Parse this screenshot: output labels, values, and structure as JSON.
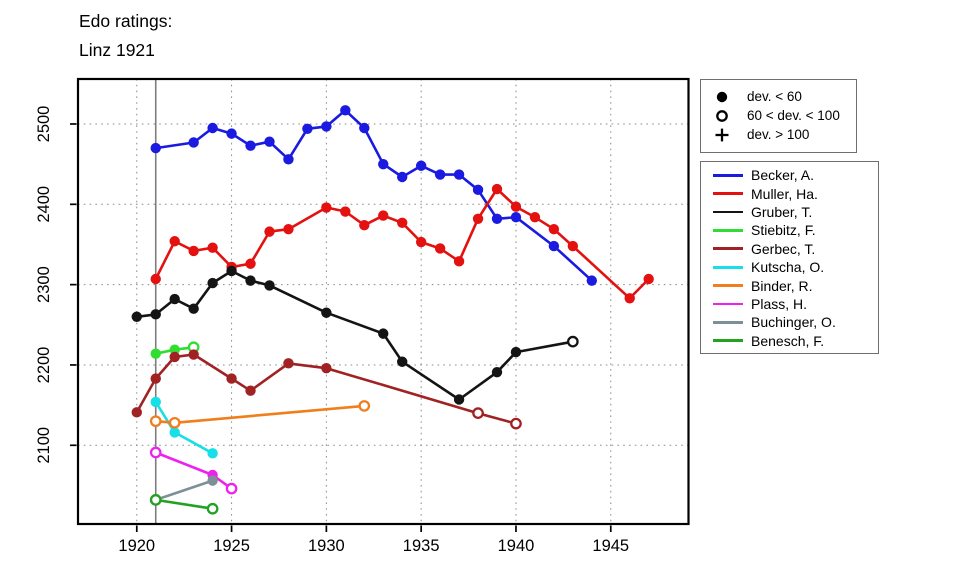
{
  "title": {
    "line1": "Edo ratings:",
    "line2": "Linz 1921"
  },
  "symbol_legend": {
    "items": [
      {
        "symbol": "filled-circle",
        "label": "dev. < 60"
      },
      {
        "symbol": "open-circle",
        "label": "60 < dev. < 100"
      },
      {
        "symbol": "plus",
        "label": "dev. > 100"
      }
    ]
  },
  "colors": {
    "background": "#ffffff",
    "axis": "#000000",
    "grid": "#8c8c8c",
    "event_line": "#7d7d7d"
  },
  "chart_data": {
    "type": "line",
    "title": "Edo ratings: Linz 1921",
    "xlabel": "",
    "ylabel": "",
    "x_ticks": [
      1920,
      1925,
      1930,
      1935,
      1940,
      1945
    ],
    "y_ticks": [
      2100,
      2200,
      2300,
      2400,
      2500
    ],
    "xlim": [
      1916.9,
      1949.1
    ],
    "ylim": [
      2002,
      2556
    ],
    "grid": "dotted",
    "event_line_year": 1921,
    "legend_position": "right",
    "point_format": "[year, rating, marker] marker f = filled circle (dev. < 60), o = open circle (60 < dev. < 100)",
    "series": [
      {
        "name": "Becker, A.",
        "color": "#1a1ae0",
        "points": [
          [
            1921,
            2470,
            "f"
          ],
          [
            1923,
            2477,
            "f"
          ],
          [
            1924,
            2495,
            "f"
          ],
          [
            1925,
            2488,
            "f"
          ],
          [
            1926,
            2473,
            "f"
          ],
          [
            1927,
            2478,
            "f"
          ],
          [
            1928,
            2456,
            "f"
          ],
          [
            1929,
            2494,
            "f"
          ],
          [
            1930,
            2497,
            "f"
          ],
          [
            1931,
            2517,
            "f"
          ],
          [
            1932,
            2495,
            "f"
          ],
          [
            1933,
            2450,
            "f"
          ],
          [
            1934,
            2434,
            "f"
          ],
          [
            1935,
            2448,
            "f"
          ],
          [
            1936,
            2437,
            "f"
          ],
          [
            1937,
            2437,
            "f"
          ],
          [
            1938,
            2418,
            "f"
          ],
          [
            1939,
            2382,
            "f"
          ],
          [
            1940,
            2384,
            "f"
          ],
          [
            1942,
            2348,
            "f"
          ],
          [
            1944,
            2305,
            "f"
          ]
        ]
      },
      {
        "name": "Muller, Ha.",
        "color": "#e41111",
        "points": [
          [
            1921,
            2307,
            "f"
          ],
          [
            1922,
            2354,
            "f"
          ],
          [
            1923,
            2342,
            "f"
          ],
          [
            1924,
            2346,
            "f"
          ],
          [
            1925,
            2322,
            "f"
          ],
          [
            1926,
            2326,
            "f"
          ],
          [
            1927,
            2366,
            "f"
          ],
          [
            1928,
            2369,
            "f"
          ],
          [
            1930,
            2396,
            "f"
          ],
          [
            1931,
            2391,
            "f"
          ],
          [
            1932,
            2374,
            "f"
          ],
          [
            1933,
            2386,
            "f"
          ],
          [
            1934,
            2377,
            "f"
          ],
          [
            1935,
            2353,
            "f"
          ],
          [
            1936,
            2345,
            "f"
          ],
          [
            1937,
            2329,
            "f"
          ],
          [
            1938,
            2382,
            "f"
          ],
          [
            1939,
            2419,
            "f"
          ],
          [
            1940,
            2397,
            "f"
          ],
          [
            1941,
            2384,
            "f"
          ],
          [
            1942,
            2369,
            "f"
          ],
          [
            1943,
            2348,
            "f"
          ],
          [
            1946,
            2283,
            "f"
          ],
          [
            1947,
            2307,
            "f"
          ]
        ]
      },
      {
        "name": "Gruber, T.",
        "color": "#141414",
        "points": [
          [
            1920,
            2260,
            "f"
          ],
          [
            1921,
            2263,
            "f"
          ],
          [
            1922,
            2282,
            "f"
          ],
          [
            1923,
            2270,
            "f"
          ],
          [
            1924,
            2302,
            "f"
          ],
          [
            1925,
            2317,
            "f"
          ],
          [
            1926,
            2305,
            "f"
          ],
          [
            1927,
            2299,
            "f"
          ],
          [
            1930,
            2265,
            "f"
          ],
          [
            1933,
            2239,
            "f"
          ],
          [
            1934,
            2204,
            "f"
          ],
          [
            1937,
            2157,
            "f"
          ],
          [
            1939,
            2191,
            "f"
          ],
          [
            1940,
            2216,
            "f"
          ],
          [
            1943,
            2229,
            "o"
          ]
        ]
      },
      {
        "name": "Stiebitz, F.",
        "color": "#30dd30",
        "points": [
          [
            1921,
            2214,
            "f"
          ],
          [
            1922,
            2219,
            "f"
          ],
          [
            1923,
            2222,
            "o"
          ]
        ]
      },
      {
        "name": "Gerbec, T.",
        "color": "#a02222",
        "points": [
          [
            1920,
            2141,
            "f"
          ],
          [
            1921,
            2183,
            "f"
          ],
          [
            1922,
            2210,
            "f"
          ],
          [
            1923,
            2213,
            "f"
          ],
          [
            1925,
            2183,
            "f"
          ],
          [
            1926,
            2168,
            "f"
          ],
          [
            1928,
            2202,
            "f"
          ],
          [
            1930,
            2196,
            "f"
          ],
          [
            1938,
            2140,
            "o"
          ],
          [
            1940,
            2127,
            "o"
          ]
        ]
      },
      {
        "name": "Kutscha, O.",
        "color": "#17dfe8",
        "points": [
          [
            1921,
            2154,
            "f"
          ],
          [
            1922,
            2116,
            "f"
          ],
          [
            1924,
            2090,
            "f"
          ]
        ]
      },
      {
        "name": "Binder, R.",
        "color": "#f07e1d",
        "points": [
          [
            1921,
            2130,
            "o"
          ],
          [
            1922,
            2128,
            "o"
          ],
          [
            1932,
            2149,
            "o"
          ]
        ]
      },
      {
        "name": "Plass, H.",
        "color": "#ee22ee",
        "points": [
          [
            1921,
            2091,
            "o"
          ],
          [
            1924,
            2063,
            "f"
          ],
          [
            1925,
            2046,
            "o"
          ]
        ]
      },
      {
        "name": "Buchinger, O.",
        "color": "#7e9097",
        "points": [
          [
            1921,
            2032,
            "o"
          ],
          [
            1924,
            2056,
            "f"
          ]
        ]
      },
      {
        "name": "Benesch, F.",
        "color": "#23a123",
        "points": [
          [
            1921,
            2032,
            "o"
          ],
          [
            1924,
            2021,
            "o"
          ]
        ]
      }
    ]
  }
}
